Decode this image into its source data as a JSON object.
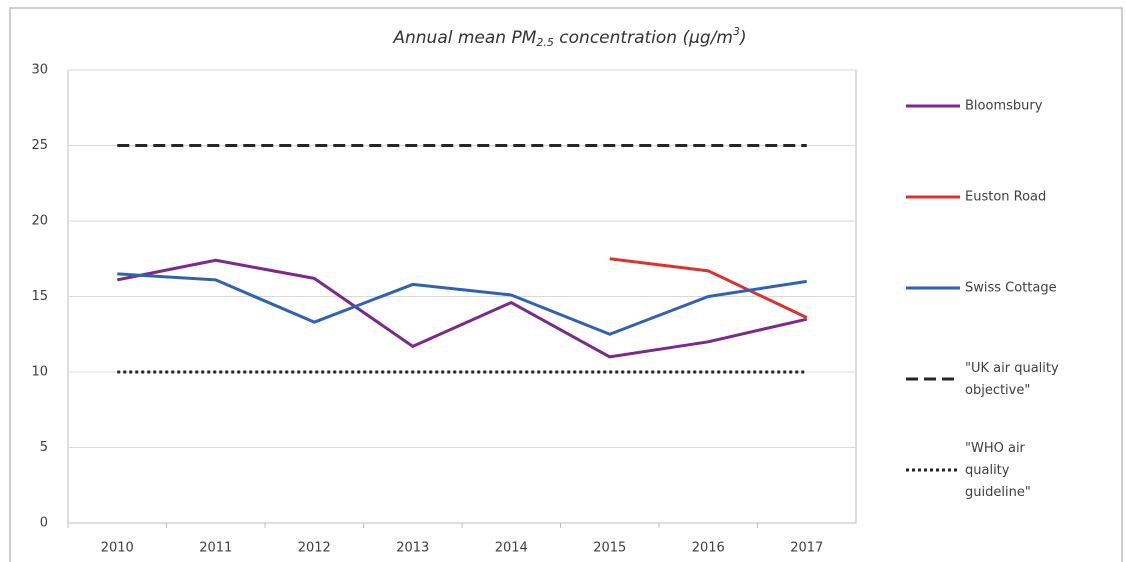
{
  "chart_data": {
    "type": "line",
    "title": [
      "Annual mean PM",
      "2.5",
      " concentration (µg/m",
      "3",
      ")"
    ],
    "categories": [
      "2010",
      "2011",
      "2012",
      "2013",
      "2014",
      "2015",
      "2016",
      "2017"
    ],
    "series": [
      {
        "name": "Bloomsbury",
        "color": "#7b2a8c",
        "dash": "solid",
        "values": [
          16.1,
          17.4,
          16.2,
          11.7,
          14.6,
          11.0,
          12.0,
          13.5
        ]
      },
      {
        "name": "Euston Road",
        "color": "#e0302b",
        "dash": "solid",
        "values": [
          null,
          null,
          null,
          null,
          null,
          17.5,
          16.7,
          13.6
        ]
      },
      {
        "name": "Swiss Cottage",
        "color": "#2e62b8",
        "dash": "solid",
        "values": [
          16.5,
          16.1,
          13.3,
          15.8,
          15.1,
          12.5,
          15.0,
          16.0
        ]
      },
      {
        "name": "\"UK air quality objective\"",
        "color": "#262626",
        "dash": "dashed",
        "values": [
          25,
          25,
          25,
          25,
          25,
          25,
          25,
          25
        ]
      },
      {
        "name": "\"WHO air quality guideline\"",
        "color": "#262626",
        "dash": "dotted",
        "values": [
          10,
          10,
          10,
          10,
          10,
          10,
          10,
          10
        ]
      }
    ],
    "ylim": [
      0,
      30
    ],
    "yticks": [
      0,
      5,
      10,
      15,
      20,
      25,
      30
    ],
    "grid": true,
    "legend": "right"
  }
}
